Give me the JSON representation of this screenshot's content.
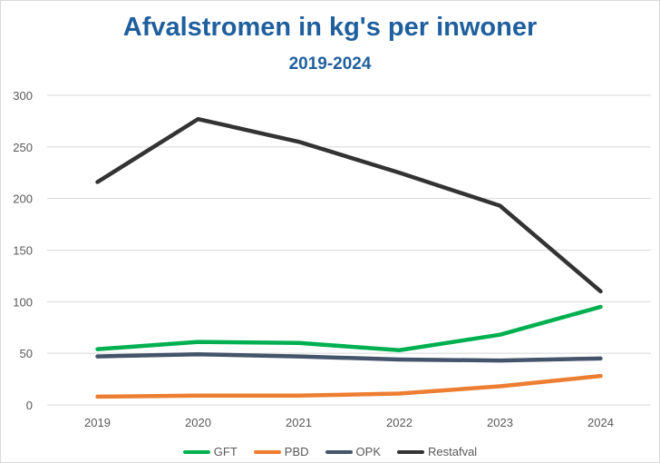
{
  "chart_data": {
    "type": "line",
    "title": "Afvalstromen in kg's per inwoner",
    "subtitle": "2019-2024",
    "categories": [
      "2019",
      "2020",
      "2021",
      "2022",
      "2023",
      "2024"
    ],
    "ylim": [
      0,
      300
    ],
    "yticks": [
      0,
      50,
      100,
      150,
      200,
      250,
      300
    ],
    "grid": true,
    "legend_position": "bottom",
    "series": [
      {
        "name": "GFT",
        "color": "#00b050",
        "values": [
          54,
          61,
          60,
          53,
          68,
          95
        ]
      },
      {
        "name": "PBD",
        "color": "#ed7d31",
        "values": [
          8,
          9,
          9,
          11,
          18,
          28
        ]
      },
      {
        "name": "OPK",
        "color": "#44546a",
        "values": [
          47,
          49,
          47,
          44,
          43,
          45
        ]
      },
      {
        "name": "Restafval",
        "color": "#333333",
        "values": [
          216,
          277,
          255,
          225,
          193,
          110
        ]
      }
    ]
  }
}
